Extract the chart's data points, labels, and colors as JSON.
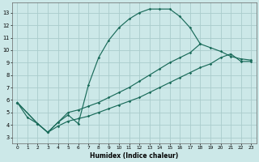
{
  "xlabel": "Humidex (Indice chaleur)",
  "bg_color": "#cce8e8",
  "grid_color": "#aacccc",
  "line_color": "#1a6b5a",
  "xlim": [
    -0.5,
    23.5
  ],
  "ylim": [
    2.5,
    13.8
  ],
  "yticks": [
    3,
    4,
    5,
    6,
    7,
    8,
    9,
    10,
    11,
    12,
    13
  ],
  "xticks": [
    0,
    1,
    2,
    3,
    4,
    5,
    6,
    7,
    8,
    9,
    10,
    11,
    12,
    13,
    14,
    15,
    16,
    17,
    18,
    19,
    20,
    21,
    22,
    23
  ],
  "line1_x": [
    0,
    1,
    2,
    3,
    4,
    5,
    6,
    7,
    8,
    9,
    10,
    11,
    12,
    13,
    14,
    15,
    16,
    17,
    18
  ],
  "line1_y": [
    5.8,
    4.6,
    4.1,
    3.4,
    4.2,
    4.8,
    4.1,
    7.2,
    9.4,
    10.8,
    11.8,
    12.5,
    13.0,
    13.3,
    13.3,
    13.3,
    12.7,
    11.8,
    10.5
  ],
  "line2_x": [
    0,
    2,
    3,
    4,
    5,
    6,
    7,
    8,
    9,
    10,
    11,
    12,
    13,
    14,
    15,
    16,
    17,
    18,
    19,
    20,
    21,
    22,
    23
  ],
  "line2_y": [
    5.8,
    4.1,
    3.4,
    4.2,
    5.0,
    5.2,
    5.5,
    5.8,
    6.2,
    6.6,
    7.0,
    7.5,
    8.0,
    8.5,
    9.0,
    9.4,
    9.8,
    10.5,
    10.2,
    9.9,
    9.5,
    9.3,
    9.2
  ],
  "line3_x": [
    0,
    2,
    3,
    4,
    5,
    6,
    7,
    8,
    9,
    10,
    11,
    12,
    13,
    14,
    15,
    16,
    17,
    18,
    19,
    20,
    21,
    22,
    23
  ],
  "line3_y": [
    5.8,
    4.1,
    3.4,
    3.9,
    4.3,
    4.5,
    4.7,
    5.0,
    5.3,
    5.6,
    5.9,
    6.2,
    6.6,
    7.0,
    7.4,
    7.8,
    8.2,
    8.6,
    8.9,
    9.4,
    9.7,
    9.1,
    9.1
  ]
}
